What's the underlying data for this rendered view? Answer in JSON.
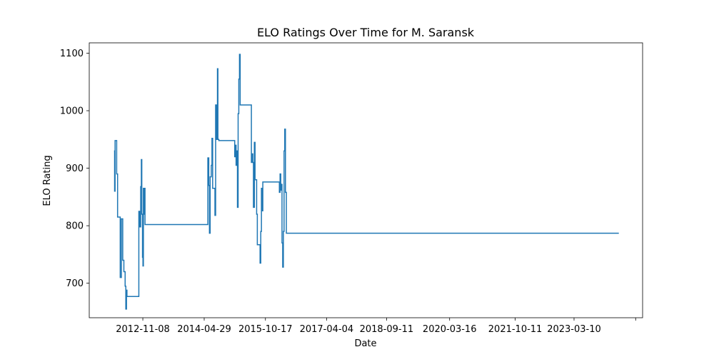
{
  "chart_data": {
    "type": "line",
    "title": "ELO Ratings Over Time for M. Saransk",
    "xlabel": "Date",
    "ylabel": "ELO Rating",
    "x_tick_labels": [
      "2012-11-08",
      "2014-04-29",
      "2015-10-17",
      "2017-04-04",
      "2018-09-11",
      "2020-03-16",
      "2021-10-11",
      "2023-03-10"
    ],
    "xlim": [
      "2011-07-28",
      "2024-10-30"
    ],
    "y_ticks": [
      700,
      800,
      900,
      1000,
      1100
    ],
    "ylim": [
      640,
      1118
    ],
    "grid": false,
    "line_color": "#1f77b4",
    "series": [
      {
        "points": [
          [
            "2012-03-01",
            930
          ],
          [
            "2012-03-06",
            860
          ],
          [
            "2012-03-10",
            948
          ],
          [
            "2012-03-20",
            948
          ],
          [
            "2012-03-24",
            890
          ],
          [
            "2012-04-01",
            815
          ],
          [
            "2012-04-20",
            815
          ],
          [
            "2012-04-24",
            710
          ],
          [
            "2012-05-04",
            812
          ],
          [
            "2012-05-10",
            812
          ],
          [
            "2012-05-16",
            740
          ],
          [
            "2012-05-26",
            720
          ],
          [
            "2012-06-06",
            695
          ],
          [
            "2012-06-12",
            655
          ],
          [
            "2012-06-18",
            688
          ],
          [
            "2012-06-22",
            677
          ],
          [
            "2012-09-30",
            677
          ],
          [
            "2012-10-04",
            825
          ],
          [
            "2012-10-12",
            798
          ],
          [
            "2012-10-20",
            868
          ],
          [
            "2012-10-26",
            915
          ],
          [
            "2012-10-30",
            820
          ],
          [
            "2012-11-05",
            745
          ],
          [
            "2012-11-09",
            730
          ],
          [
            "2012-11-13",
            865
          ],
          [
            "2012-11-19",
            820
          ],
          [
            "2012-11-23",
            865
          ],
          [
            "2012-11-27",
            802
          ],
          [
            "2014-05-25",
            802
          ],
          [
            "2014-05-31",
            918
          ],
          [
            "2014-06-08",
            870
          ],
          [
            "2014-06-14",
            787
          ],
          [
            "2014-06-20",
            885
          ],
          [
            "2014-06-30",
            905
          ],
          [
            "2014-07-06",
            952
          ],
          [
            "2014-07-12",
            865
          ],
          [
            "2014-07-26",
            865
          ],
          [
            "2014-08-01",
            818
          ],
          [
            "2014-08-07",
            1010
          ],
          [
            "2014-08-13",
            950
          ],
          [
            "2014-08-19",
            1010
          ],
          [
            "2014-08-23",
            1073
          ],
          [
            "2014-08-27",
            950
          ],
          [
            "2014-09-04",
            948
          ],
          [
            "2015-01-15",
            948
          ],
          [
            "2015-01-21",
            920
          ],
          [
            "2015-01-27",
            940
          ],
          [
            "2015-02-02",
            905
          ],
          [
            "2015-02-08",
            930
          ],
          [
            "2015-02-14",
            832
          ],
          [
            "2015-02-20",
            995
          ],
          [
            "2015-02-26",
            1055
          ],
          [
            "2015-03-04",
            1098
          ],
          [
            "2015-03-10",
            1010
          ],
          [
            "2015-06-10",
            1010
          ],
          [
            "2015-06-16",
            910
          ],
          [
            "2015-06-22",
            925
          ],
          [
            "2015-06-28",
            910
          ],
          [
            "2015-07-04",
            832
          ],
          [
            "2015-07-12",
            945
          ],
          [
            "2015-07-18",
            880
          ],
          [
            "2015-08-01",
            820
          ],
          [
            "2015-08-07",
            767
          ],
          [
            "2015-08-25",
            767
          ],
          [
            "2015-08-31",
            735
          ],
          [
            "2015-09-06",
            790
          ],
          [
            "2015-09-12",
            865
          ],
          [
            "2015-09-18",
            826
          ],
          [
            "2015-09-24",
            876
          ],
          [
            "2016-02-10",
            876
          ],
          [
            "2016-02-16",
            858
          ],
          [
            "2016-02-22",
            890
          ],
          [
            "2016-02-28",
            862
          ],
          [
            "2016-03-06",
            872
          ],
          [
            "2016-03-10",
            770
          ],
          [
            "2016-03-16",
            728
          ],
          [
            "2016-03-22",
            790
          ],
          [
            "2016-03-28",
            930
          ],
          [
            "2016-04-03",
            968
          ],
          [
            "2016-04-09",
            858
          ],
          [
            "2016-04-17",
            787
          ],
          [
            "2024-04-05",
            787
          ]
        ]
      }
    ]
  }
}
